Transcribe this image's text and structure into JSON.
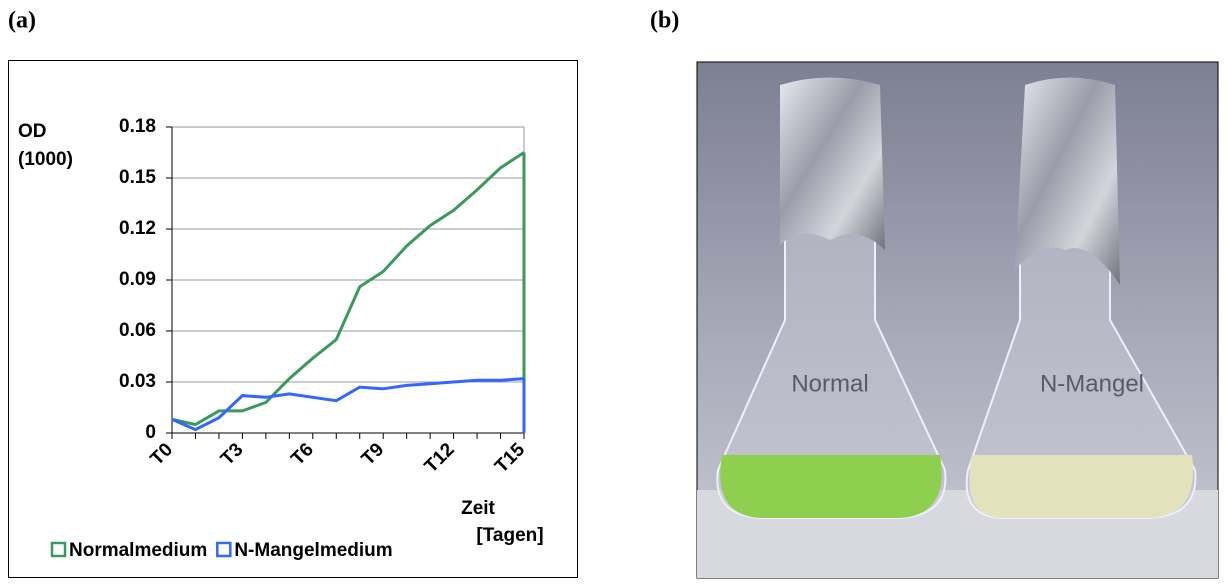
{
  "panels": {
    "a": "(a)",
    "b": "(b)"
  },
  "chart_data": {
    "type": "line",
    "y_label": [
      "OD",
      "(1000)"
    ],
    "x_label": [
      "Zeit",
      "[Tagen]"
    ],
    "categories": [
      "T0",
      null,
      null,
      "T3",
      null,
      null,
      "T6",
      null,
      null,
      "T9",
      null,
      null,
      "T12",
      null,
      null,
      "T15"
    ],
    "series": [
      {
        "name": "Normalmedium",
        "color": "#3a9a5b",
        "values": [
          0.008,
          0.005,
          0.013,
          0.013,
          0.018,
          0.032,
          0.044,
          0.055,
          0.086,
          0.095,
          0.11,
          0.122,
          0.131,
          0.143,
          0.156,
          0.165
        ]
      },
      {
        "name": "N-Mangelmedium",
        "color": "#3366ff",
        "values": [
          0.008,
          0.002,
          0.009,
          0.022,
          0.021,
          0.023,
          0.021,
          0.019,
          0.027,
          0.026,
          0.028,
          0.029,
          0.03,
          0.031,
          0.031,
          0.032
        ]
      }
    ],
    "ylim": [
      0,
      0.18
    ],
    "yticks": [
      0,
      0.03,
      0.06,
      0.09,
      0.12,
      0.15,
      0.18
    ],
    "grid": true
  },
  "photo": {
    "labels": [
      "Normal",
      "N-Mangel"
    ]
  }
}
